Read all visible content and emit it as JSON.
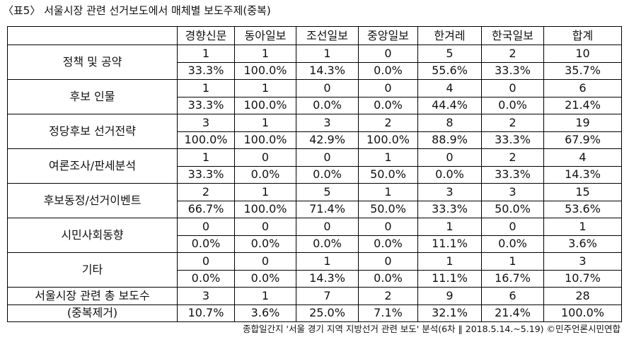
{
  "title": "〈표5〉 서울시장 관련 선거보도에서 매체별 보도주제(중복)",
  "table": {
    "columns": [
      "경향신문",
      "동아일보",
      "조선일보",
      "중앙일보",
      "한겨레",
      "한국일보",
      "합계"
    ],
    "rows": [
      {
        "label": "정책 및 공약",
        "counts": [
          1,
          1,
          1,
          0,
          5,
          2,
          10
        ],
        "percents": [
          "33.3%",
          "100.0%",
          "14.3%",
          "0.0%",
          "55.6%",
          "33.3%",
          "35.7%"
        ]
      },
      {
        "label": "후보 인물",
        "counts": [
          1,
          1,
          0,
          0,
          4,
          0,
          6
        ],
        "percents": [
          "33.3%",
          "100.0%",
          "0.0%",
          "0.0%",
          "44.4%",
          "0.0%",
          "21.4%"
        ]
      },
      {
        "label": "정당후보 선거전략",
        "counts": [
          3,
          1,
          3,
          2,
          8,
          2,
          19
        ],
        "percents": [
          "100.0%",
          "100.0%",
          "42.9%",
          "100.0%",
          "88.9%",
          "33.3%",
          "67.9%"
        ]
      },
      {
        "label": "여론조사/판세분석",
        "counts": [
          1,
          0,
          0,
          1,
          0,
          2,
          4
        ],
        "percents": [
          "33.3%",
          "0.0%",
          "0.0%",
          "50.0%",
          "0.0%",
          "33.3%",
          "14.3%"
        ]
      },
      {
        "label": "후보동정/선거이벤트",
        "counts": [
          2,
          1,
          5,
          1,
          3,
          3,
          15
        ],
        "percents": [
          "66.7%",
          "100.0%",
          "71.4%",
          "50.0%",
          "33.3%",
          "50.0%",
          "53.6%"
        ]
      },
      {
        "label": "시민사회동향",
        "counts": [
          0,
          0,
          0,
          0,
          1,
          0,
          1
        ],
        "percents": [
          "0.0%",
          "0.0%",
          "0.0%",
          "0.0%",
          "11.1%",
          "0.0%",
          "3.6%"
        ]
      },
      {
        "label": "기타",
        "counts": [
          0,
          0,
          1,
          0,
          1,
          1,
          3
        ],
        "percents": [
          "0.0%",
          "0.0%",
          "14.3%",
          "0.0%",
          "11.1%",
          "16.7%",
          "10.7%"
        ]
      }
    ],
    "total": {
      "label": "서울시장 관련 총 보도수",
      "note": "(중복제거)",
      "counts": [
        3,
        1,
        7,
        2,
        9,
        6,
        28
      ],
      "percents": [
        "10.7%",
        "3.6%",
        "25.0%",
        "7.1%",
        "32.1%",
        "21.4%",
        "100.0%"
      ]
    }
  },
  "source": "종합일간지 '서울 경기 지역 지방선거 관련 보도' 분석(6차 ‖ 2018.5.14.~5.19) ©민주언론시민연합"
}
